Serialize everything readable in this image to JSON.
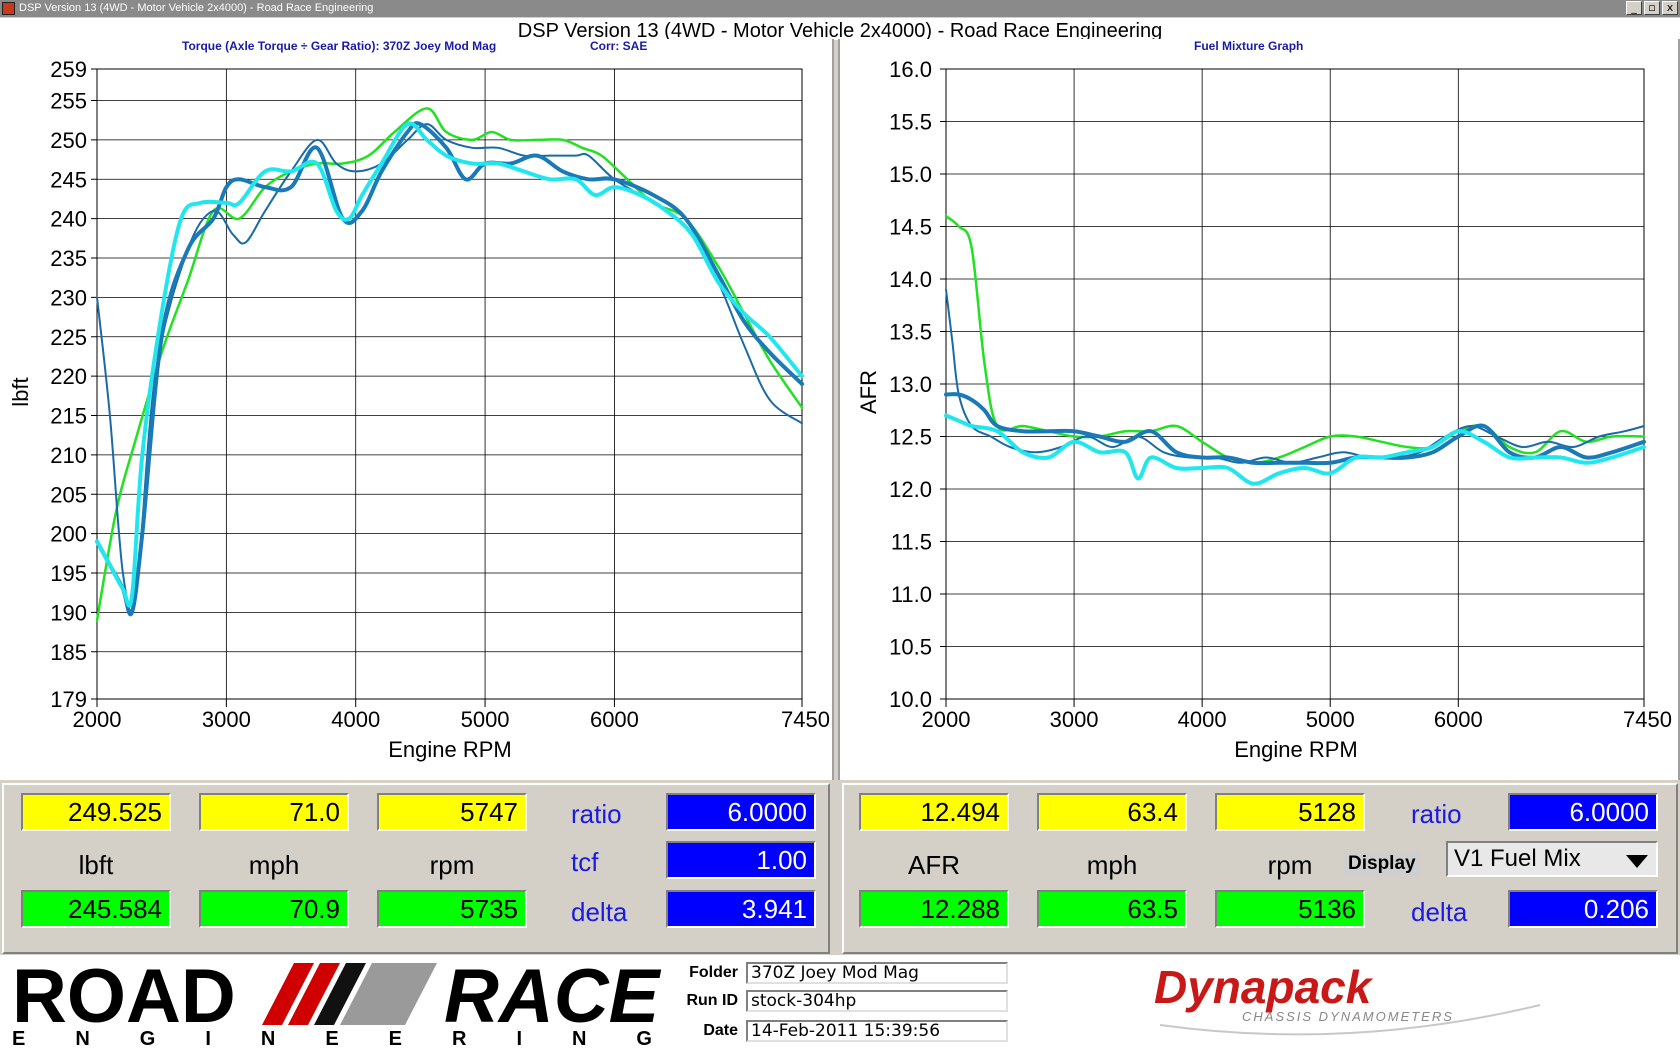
{
  "window": {
    "title": "DSP Version 13 (4WD - Motor Vehicle 2x4000) - Road Race Engineering",
    "main_title": "DSP Version 13 (4WD - Motor Vehicle 2x4000) - Road Race Engineering",
    "buttons": [
      "_",
      "▫",
      "x"
    ]
  },
  "left_panel": {
    "subtitle": "Torque (Axle Torque ÷ Gear Ratio): 370Z Joey Mod Mag",
    "corr": "Corr: SAE"
  },
  "right_panel": {
    "subtitle": "Fuel Mixture Graph"
  },
  "colors": {
    "green": "#22e022",
    "cyan": "#22e6ee",
    "blue": "#1a7ab8",
    "dark_blue": "#1a6aa8"
  },
  "chart_data": [
    {
      "type": "line",
      "title": "Torque (Axle Torque ÷ Gear Ratio): 370Z Joey Mod Mag",
      "xlabel": "Engine RPM",
      "ylabel": "lbft",
      "xlim": [
        2000,
        7450
      ],
      "ylim": [
        179,
        259
      ],
      "xticks": [
        "2000",
        "3000",
        "4000",
        "5000",
        "6000",
        "7450"
      ],
      "yticks": [
        "259",
        "255",
        "250",
        "245",
        "240",
        "235",
        "230",
        "225",
        "220",
        "215",
        "210",
        "205",
        "200",
        "195",
        "190",
        "185",
        "179"
      ],
      "grid": true,
      "series": [
        {
          "color": "green",
          "width": 2.5,
          "x": [
            2000,
            2150,
            2300,
            2500,
            2700,
            2900,
            3100,
            3300,
            3500,
            3700,
            3900,
            4100,
            4300,
            4550,
            4700,
            4900,
            5050,
            5200,
            5400,
            5600,
            5750,
            5900,
            6100,
            6300,
            6550,
            6800,
            7000,
            7200,
            7450
          ],
          "y": [
            189,
            203,
            212,
            223,
            232,
            241,
            240,
            244,
            246,
            247,
            247,
            248,
            251,
            254,
            251,
            250,
            251,
            250,
            250,
            250,
            249,
            248,
            245,
            242,
            240,
            234,
            228,
            222,
            216
          ]
        },
        {
          "color": "dark_blue",
          "width": 2,
          "x": [
            2000,
            2100,
            2200,
            2300,
            2450,
            2700,
            2900,
            3050,
            3150,
            3300,
            3500,
            3700,
            3850,
            4000,
            4200,
            4400,
            4550,
            4700,
            4900,
            5100,
            5300,
            5500,
            5700,
            5800,
            6000,
            6300,
            6550,
            6800,
            7000,
            7200,
            7450
          ],
          "y": [
            230,
            215,
            195,
            192,
            220,
            236,
            241,
            238,
            237,
            241,
            246,
            250,
            247,
            246,
            247,
            250,
            252,
            250,
            249,
            249,
            248,
            248,
            248,
            248,
            245,
            242,
            239,
            232,
            224,
            217,
            214
          ]
        },
        {
          "color": "blue",
          "width": 4,
          "x": [
            2000,
            2100,
            2200,
            2270,
            2350,
            2500,
            2700,
            2900,
            3000,
            3100,
            3300,
            3500,
            3700,
            3900,
            4050,
            4200,
            4400,
            4500,
            4700,
            4850,
            5000,
            5200,
            5400,
            5600,
            5800,
            6000,
            6300,
            6550,
            6800,
            7000,
            7200,
            7450
          ],
          "y": [
            199,
            196,
            193,
            190,
            200,
            225,
            236,
            240,
            244,
            245,
            244,
            244,
            249,
            240,
            241,
            246,
            251,
            252,
            249,
            245,
            247,
            247,
            248,
            246,
            245,
            245,
            243,
            240,
            233,
            227,
            223,
            219
          ]
        },
        {
          "color": "cyan",
          "width": 4,
          "x": [
            2000,
            2100,
            2200,
            2270,
            2350,
            2500,
            2650,
            2800,
            3000,
            3100,
            3300,
            3500,
            3700,
            3850,
            3950,
            4050,
            4200,
            4400,
            4550,
            4700,
            4900,
            5100,
            5300,
            5500,
            5700,
            5850,
            6000,
            6200,
            6400,
            6600,
            6800,
            7000,
            7200,
            7450
          ],
          "y": [
            199,
            196,
            193,
            192,
            210,
            228,
            240,
            242,
            242,
            242,
            246,
            246,
            247,
            241,
            240,
            243,
            247,
            252,
            250,
            248,
            247,
            247,
            246,
            245,
            245,
            243,
            244,
            243,
            241,
            238,
            232,
            228,
            225,
            220
          ]
        }
      ]
    },
    {
      "type": "line",
      "title": "Fuel Mixture Graph",
      "xlabel": "Engine RPM",
      "ylabel": "AFR",
      "xlim": [
        2000,
        7450
      ],
      "ylim": [
        10.0,
        16.0
      ],
      "xticks": [
        "2000",
        "3000",
        "4000",
        "5000",
        "6000",
        "7450"
      ],
      "yticks": [
        "16.0",
        "15.5",
        "15.0",
        "14.5",
        "14.0",
        "13.5",
        "13.0",
        "12.5",
        "12.0",
        "11.5",
        "11.0",
        "10.5",
        "10.0"
      ],
      "grid": true,
      "series": [
        {
          "color": "green",
          "width": 2.5,
          "x": [
            2000,
            2100,
            2200,
            2300,
            2400,
            2600,
            2800,
            3000,
            3200,
            3400,
            3600,
            3800,
            4000,
            4200,
            4400,
            4600,
            4800,
            5000,
            5200,
            5400,
            5600,
            5800,
            6000,
            6200,
            6400,
            6600,
            6800,
            7000,
            7200,
            7450
          ],
          "y": [
            14.6,
            14.5,
            14.3,
            13.2,
            12.6,
            12.6,
            12.55,
            12.5,
            12.5,
            12.55,
            12.55,
            12.6,
            12.45,
            12.3,
            12.25,
            12.3,
            12.4,
            12.5,
            12.5,
            12.45,
            12.4,
            12.4,
            12.55,
            12.6,
            12.4,
            12.35,
            12.55,
            12.45,
            12.5,
            12.5
          ]
        },
        {
          "color": "dark_blue",
          "width": 2,
          "x": [
            2000,
            2050,
            2100,
            2200,
            2350,
            2500,
            2700,
            2900,
            3100,
            3300,
            3500,
            3700,
            3900,
            4100,
            4300,
            4500,
            4700,
            4900,
            5100,
            5300,
            5500,
            5700,
            5900,
            6100,
            6300,
            6500,
            6700,
            6900,
            7100,
            7300,
            7450
          ],
          "y": [
            13.9,
            13.4,
            12.9,
            12.6,
            12.5,
            12.4,
            12.35,
            12.4,
            12.5,
            12.4,
            12.5,
            12.35,
            12.3,
            12.3,
            12.25,
            12.3,
            12.25,
            12.3,
            12.35,
            12.3,
            12.3,
            12.35,
            12.5,
            12.6,
            12.5,
            12.4,
            12.45,
            12.4,
            12.5,
            12.55,
            12.6
          ]
        },
        {
          "color": "blue",
          "width": 4,
          "x": [
            2000,
            2100,
            2200,
            2300,
            2400,
            2600,
            2800,
            3000,
            3200,
            3400,
            3600,
            3800,
            4000,
            4200,
            4400,
            4600,
            4800,
            5000,
            5200,
            5400,
            5600,
            5800,
            6000,
            6200,
            6400,
            6600,
            6800,
            7000,
            7200,
            7450
          ],
          "y": [
            12.9,
            12.9,
            12.85,
            12.75,
            12.6,
            12.55,
            12.55,
            12.55,
            12.5,
            12.45,
            12.55,
            12.35,
            12.3,
            12.3,
            12.25,
            12.25,
            12.25,
            12.25,
            12.3,
            12.3,
            12.3,
            12.35,
            12.5,
            12.6,
            12.35,
            12.3,
            12.4,
            12.3,
            12.35,
            12.45
          ]
        },
        {
          "color": "cyan",
          "width": 4,
          "x": [
            2000,
            2100,
            2200,
            2400,
            2600,
            2800,
            3000,
            3200,
            3400,
            3500,
            3600,
            3800,
            4000,
            4200,
            4400,
            4600,
            4800,
            5000,
            5200,
            5400,
            5600,
            5800,
            6000,
            6200,
            6400,
            6600,
            6800,
            7000,
            7200,
            7450
          ],
          "y": [
            12.7,
            12.65,
            12.6,
            12.55,
            12.35,
            12.3,
            12.45,
            12.35,
            12.35,
            12.1,
            12.3,
            12.2,
            12.2,
            12.2,
            12.05,
            12.15,
            12.2,
            12.15,
            12.3,
            12.3,
            12.35,
            12.4,
            12.55,
            12.45,
            12.3,
            12.3,
            12.3,
            12.25,
            12.3,
            12.4
          ]
        }
      ]
    }
  ],
  "readout_left": {
    "yellow": [
      "249.525",
      "71.0",
      "5747"
    ],
    "units": [
      "lbft",
      "mph",
      "rpm"
    ],
    "green": [
      "245.584",
      "70.9",
      "5735"
    ],
    "ratio_label": "ratio",
    "ratio_value": "6.0000",
    "tcf_label": "tcf",
    "tcf_value": "1.00",
    "delta_label": "delta",
    "delta_value": "3.941"
  },
  "readout_right": {
    "yellow": [
      "12.494",
      "63.4",
      "5128"
    ],
    "units": [
      "AFR",
      "mph",
      "rpm"
    ],
    "green": [
      "12.288",
      "63.5",
      "5136"
    ],
    "ratio_label": "ratio",
    "ratio_value": "6.0000",
    "display_label": "Display",
    "display_value": "V1 Fuel Mix",
    "delta_label": "delta",
    "delta_value": "0.206"
  },
  "footer": {
    "logo_top": "ROAD",
    "logo_top2": "RACE",
    "logo_bottom": "E N G I N E E R I N G",
    "folder_label": "Folder",
    "folder_value": "370Z Joey Mod Mag",
    "runid_label": "Run ID",
    "runid_value": "stock-304hp",
    "date_label": "Date",
    "date_value": "14-Feb-2011 15:39:56",
    "dynapack": "Dynapack",
    "dynapack_sub": "CHASSIS DYNAMOMETERS"
  }
}
